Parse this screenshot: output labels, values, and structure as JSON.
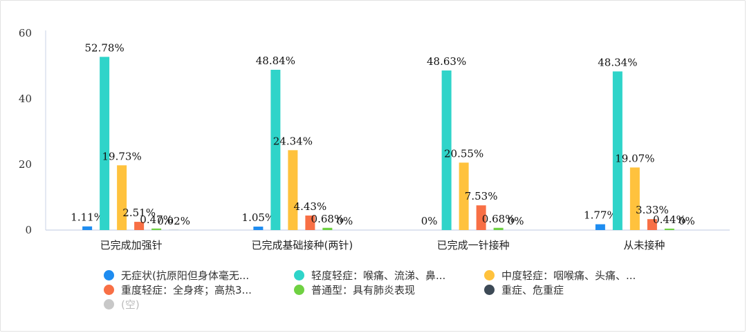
{
  "chart_data": {
    "type": "bar",
    "categories": [
      "已完成加强针",
      "已完成基础接种(两针)",
      "已完成一针接种",
      "从未接种"
    ],
    "ylim": [
      0,
      60
    ],
    "yticks": [
      0,
      20,
      40,
      60
    ],
    "legend_position": "bottom",
    "grid": false,
    "series": [
      {
        "name": "无症状(抗原阳但身体毫无...",
        "color": "#1e8cf0",
        "values": [
          1.11,
          1.05,
          0,
          1.77
        ],
        "labels": [
          "1.11%",
          "1.05%",
          "0%",
          "1.77%"
        ]
      },
      {
        "name": "轻度轻症：喉痛、流涕、鼻...",
        "color": "#2fd4c9",
        "values": [
          52.78,
          48.84,
          48.63,
          48.34
        ],
        "labels": [
          "52.78%",
          "48.84%",
          "48.63%",
          "48.34%"
        ]
      },
      {
        "name": "中度轻症：咽喉痛、头痛、...",
        "color": "#ffc23d",
        "values": [
          19.73,
          24.34,
          20.55,
          19.07
        ],
        "labels": [
          "19.73%",
          "24.34%",
          "20.55%",
          "19.07%"
        ]
      },
      {
        "name": "重度轻症：全身疼；高热3...",
        "color": "#f86f45",
        "values": [
          2.51,
          4.43,
          7.53,
          3.33
        ],
        "labels": [
          "2.51%",
          "4.43%",
          "7.53%",
          "3.33%"
        ]
      },
      {
        "name": "普通型：具有肺炎表现",
        "color": "#6fd142",
        "values": [
          0.47,
          0.68,
          0.68,
          0.44
        ],
        "labels": [
          "0.47%",
          "0.68%",
          "0.68%",
          "0.44%"
        ]
      },
      {
        "name": "重症、危重症",
        "color": "#3d4a56",
        "values": [
          0.02,
          0,
          0,
          0
        ],
        "labels": [
          "0.02%",
          "0%",
          "0%",
          "0%"
        ]
      },
      {
        "name": "(空)",
        "color": "#c8c8c8",
        "values": [
          null,
          null,
          null,
          null
        ],
        "labels": [
          "",
          "",
          "",
          ""
        ]
      }
    ]
  }
}
